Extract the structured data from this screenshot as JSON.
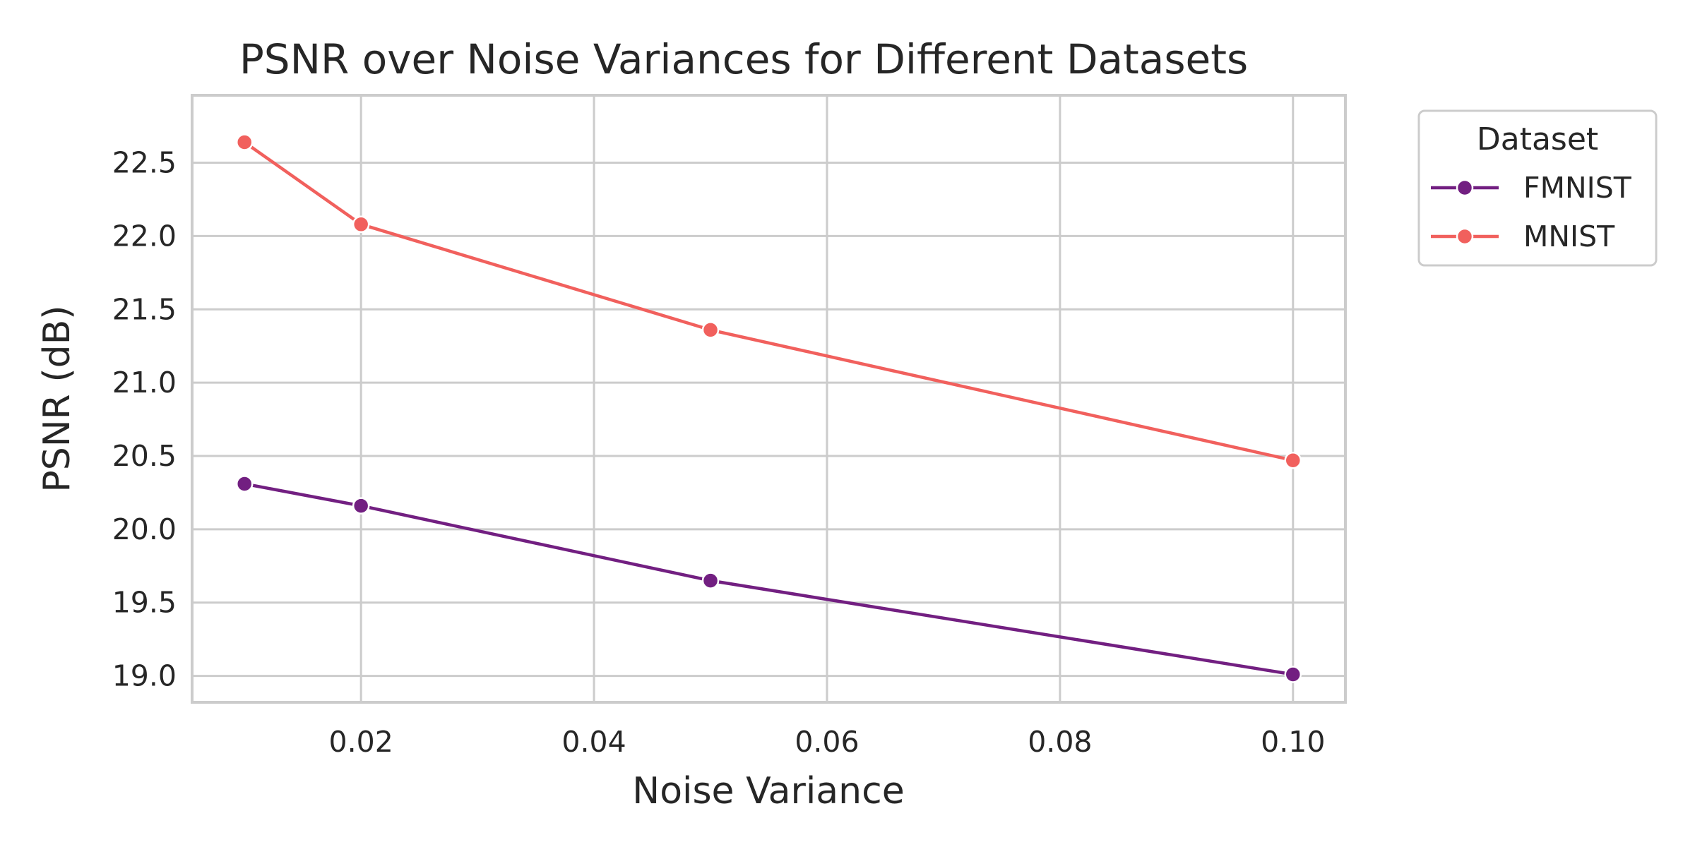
{
  "chart_data": {
    "type": "line",
    "title": "PSNR over Noise Variances for Different Datasets",
    "xlabel": "Noise Variance",
    "ylabel": "PSNR (dB)",
    "xlim": [
      0.0055,
      0.1045
    ],
    "ylim": [
      18.82,
      22.96
    ],
    "xticks": [
      0.02,
      0.04,
      0.06,
      0.08,
      0.1
    ],
    "xtick_labels": [
      "0.02",
      "0.04",
      "0.06",
      "0.08",
      "0.10"
    ],
    "yticks": [
      19.0,
      19.5,
      20.0,
      20.5,
      21.0,
      21.5,
      22.0,
      22.5
    ],
    "ytick_labels": [
      "19.0",
      "19.5",
      "20.0",
      "20.5",
      "21.0",
      "21.5",
      "22.0",
      "22.5"
    ],
    "grid": true,
    "legend": {
      "title": "Dataset",
      "placement": "outside-upper-right"
    },
    "series": [
      {
        "name": "FMNIST",
        "color": "#721f81",
        "marker": "circle",
        "x": [
          0.01,
          0.02,
          0.05,
          0.1
        ],
        "y": [
          20.31,
          20.16,
          19.65,
          19.01
        ]
      },
      {
        "name": "MNIST",
        "color": "#f1605d",
        "marker": "circle",
        "x": [
          0.01,
          0.02,
          0.05,
          0.1
        ],
        "y": [
          22.64,
          22.08,
          21.36,
          20.47
        ]
      }
    ]
  }
}
